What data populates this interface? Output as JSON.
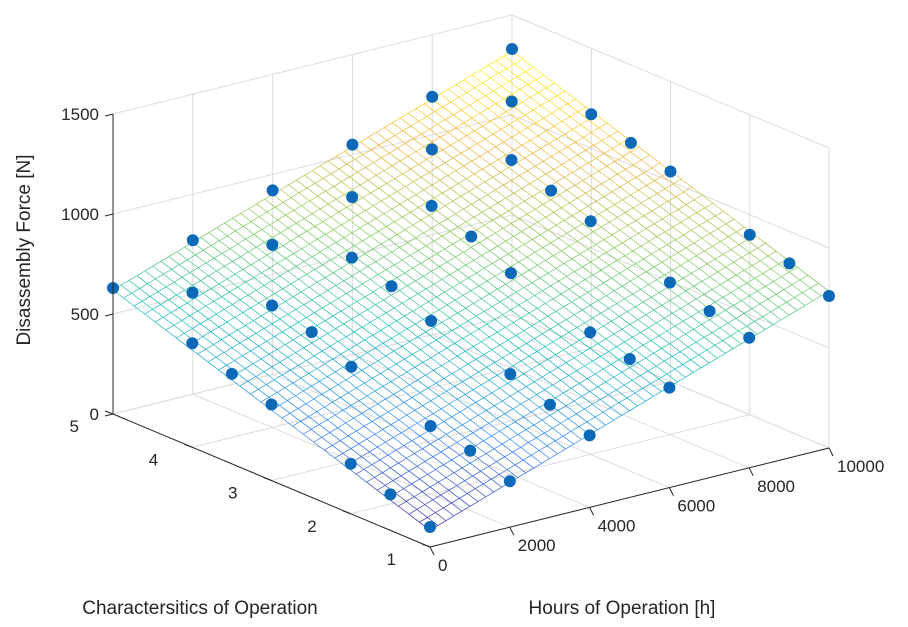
{
  "chart_data": {
    "type": "surface3d_scatter",
    "title": "",
    "xlabel": "Hours of Operation [h]",
    "ylabel": "Characteristics of Operation",
    "ylabel_text": "Charactersitics of Operation",
    "zlabel": "Disassembly Force [N]",
    "xlim": [
      0,
      10000
    ],
    "ylim": [
      1,
      5
    ],
    "zlim": [
      0,
      1500
    ],
    "x_ticks": [
      0,
      2000,
      4000,
      6000,
      8000,
      10000
    ],
    "x_tick_labels": [
      "0",
      "2000",
      "4000",
      "6000",
      "8000",
      "10000"
    ],
    "y_ticks": [
      1,
      2,
      3,
      4,
      5
    ],
    "y_tick_labels": [
      "1",
      "2",
      "3",
      "4",
      "5"
    ],
    "z_ticks": [
      0,
      500,
      1000,
      1500
    ],
    "z_tick_labels": [
      "0",
      "500",
      "1000",
      "1500"
    ],
    "colormap": "parula",
    "mesh_colors": [
      "#3e26a8",
      "#2e87f7",
      "#13beb8",
      "#80cb58",
      "#f4b436",
      "#f9fb0e"
    ],
    "marker_color": "#0b69b7",
    "surface": {
      "model": "z = a + b*hours + c*characteristic",
      "a": -50,
      "b": 0.07,
      "c": 134,
      "grid_x_steps": 50,
      "grid_y_steps": 30
    },
    "points": [
      {
        "x": 0,
        "y": 1,
        "z": 100
      },
      {
        "x": 0,
        "y": 2,
        "z": 250
      },
      {
        "x": 0,
        "y": 3,
        "z": 380
      },
      {
        "x": 0,
        "y": 4,
        "z": 520
      },
      {
        "x": 0,
        "y": 5,
        "z": 630
      },
      {
        "x": 2000,
        "y": 1,
        "z": 230
      },
      {
        "x": 2000,
        "y": 2,
        "z": 340
      },
      {
        "x": 2000,
        "y": 3,
        "z": 470
      },
      {
        "x": 2000,
        "y": 4,
        "z": 610
      },
      {
        "x": 2000,
        "y": 5,
        "z": 770
      },
      {
        "x": 4000,
        "y": 1,
        "z": 360
      },
      {
        "x": 4000,
        "y": 2,
        "z": 500
      },
      {
        "x": 4000,
        "y": 3,
        "z": 600
      },
      {
        "x": 4000,
        "y": 4,
        "z": 750
      },
      {
        "x": 4000,
        "y": 5,
        "z": 920
      },
      {
        "x": 6000,
        "y": 1,
        "z": 500
      },
      {
        "x": 6000,
        "y": 2,
        "z": 610
      },
      {
        "x": 6000,
        "y": 3,
        "z": 740
      },
      {
        "x": 6000,
        "y": 4,
        "z": 910
      },
      {
        "x": 6000,
        "y": 5,
        "z": 1050
      },
      {
        "x": 8000,
        "y": 1,
        "z": 650
      },
      {
        "x": 8000,
        "y": 2,
        "z": 760
      },
      {
        "x": 8000,
        "y": 3,
        "z": 900
      },
      {
        "x": 8000,
        "y": 4,
        "z": 1040
      },
      {
        "x": 8000,
        "y": 5,
        "z": 1190
      },
      {
        "x": 10000,
        "y": 1,
        "z": 760
      },
      {
        "x": 10000,
        "y": 2,
        "z": 900
      },
      {
        "x": 10000,
        "y": 3,
        "z": 1050
      },
      {
        "x": 10000,
        "y": 4,
        "z": 1170
      },
      {
        "x": 10000,
        "y": 5,
        "z": 1330
      },
      {
        "x": 0,
        "y": 1.5,
        "z": 180
      },
      {
        "x": 2000,
        "y": 1.5,
        "z": 300
      },
      {
        "x": 4000,
        "y": 1.5,
        "z": 430
      },
      {
        "x": 6000,
        "y": 1.5,
        "z": 560
      },
      {
        "x": 8000,
        "y": 1.5,
        "z": 700
      },
      {
        "x": 10000,
        "y": 1.5,
        "z": 840
      },
      {
        "x": 0,
        "y": 3.5,
        "z": 450
      },
      {
        "x": 2000,
        "y": 3.5,
        "z": 560
      },
      {
        "x": 4000,
        "y": 3.5,
        "z": 690
      },
      {
        "x": 6000,
        "y": 3.5,
        "z": 840
      },
      {
        "x": 8000,
        "y": 3.5,
        "z": 970
      },
      {
        "x": 10000,
        "y": 3.5,
        "z": 1110
      },
      {
        "x": 1000,
        "y": 4.5,
        "z": 640
      },
      {
        "x": 3000,
        "y": 4.5,
        "z": 780
      },
      {
        "x": 5000,
        "y": 4.5,
        "z": 920
      },
      {
        "x": 7000,
        "y": 4.5,
        "z": 1060
      },
      {
        "x": 9000,
        "y": 4.5,
        "z": 1200
      }
    ],
    "grid": true
  }
}
